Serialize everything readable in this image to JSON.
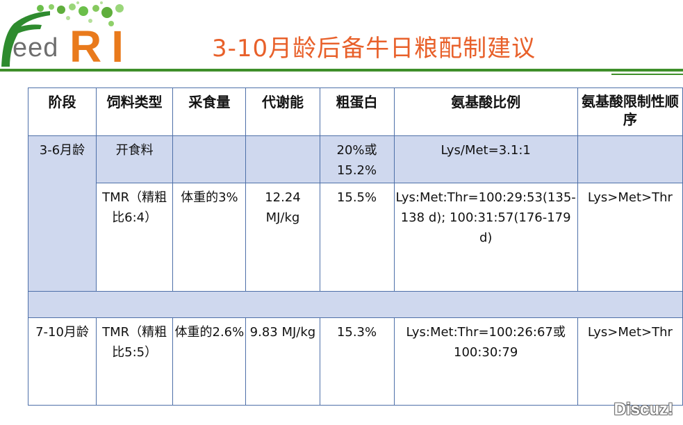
{
  "logo": {
    "text": "eed",
    "ri": "RI"
  },
  "title": "3-10月龄后备牛日粮配制建议",
  "table": {
    "headers": [
      "阶段",
      "饲料类型",
      "采食量",
      "代谢能",
      "粗蛋白",
      "氨基酸比例",
      "氨基酸限制性顺序"
    ],
    "stage1": "3-6月龄",
    "row1": [
      "开食料",
      "",
      "",
      "20%或15.2%",
      "Lys/Met=3.1:1",
      ""
    ],
    "row2": [
      "TMR（精粗比6:4）",
      "体重的3%",
      "12.24 MJ/kg",
      "15.5%",
      "Lys:Met:Thr=100:29:53(135-138 d); 100:31:57(176-179 d)",
      "Lys>Met>Thr"
    ],
    "stage2": "7-10月龄",
    "row3": [
      "TMR（精粗比5:5）",
      "体重的2.6%",
      "9.83 MJ/kg",
      "15.3%",
      "Lys:Met:Thr=100:26:67或100:30:79",
      "Lys>Met>Thr"
    ]
  },
  "watermark": "Discuz!"
}
